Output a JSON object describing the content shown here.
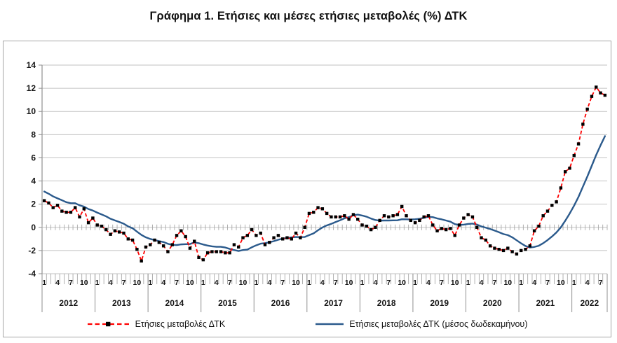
{
  "chart_data": {
    "type": "line",
    "title": "Γράφημα 1. Ετήσιες και μέσες ετήσιες μεταβολές (%) ΔΤΚ",
    "ylim": [
      -4,
      14
    ],
    "y_tick_step": 2,
    "y_tick_labels": [
      "-4",
      "-2",
      "0",
      "2",
      "4",
      "6",
      "8",
      "10",
      "12",
      "14"
    ],
    "grid": "horizontal",
    "legend_position": "bottom",
    "colors": {
      "annual": "#ff0000",
      "marker": "#000000",
      "average": "#2b5a8c",
      "gridline": "#c2c2c2",
      "axis": "#8f8f8f",
      "minor_tick": "#a8a8a8"
    },
    "x_axis": {
      "month_labels_shown": [
        "1",
        "4",
        "7",
        "10"
      ],
      "years": [
        {
          "label": "2012",
          "months": 12
        },
        {
          "label": "2013",
          "months": 12
        },
        {
          "label": "2014",
          "months": 12
        },
        {
          "label": "2015",
          "months": 12
        },
        {
          "label": "2016",
          "months": 12
        },
        {
          "label": "2017",
          "months": 12
        },
        {
          "label": "2018",
          "months": 12
        },
        {
          "label": "2019",
          "months": 12
        },
        {
          "label": "2020",
          "months": 12
        },
        {
          "label": "2021",
          "months": 12
        },
        {
          "label": "2022",
          "months": 8
        }
      ]
    },
    "series": [
      {
        "name": "Ετήσιες μεταβολές ΔΤΚ",
        "style": "dashed-with-square-markers",
        "color": "#ff0000",
        "marker_color": "#000000",
        "values": [
          2.3,
          2.1,
          1.7,
          1.9,
          1.4,
          1.3,
          1.3,
          1.7,
          0.9,
          1.6,
          0.4,
          0.8,
          0.2,
          0.1,
          -0.2,
          -0.6,
          -0.3,
          -0.4,
          -0.5,
          -1.0,
          -1.1,
          -1.9,
          -2.9,
          -1.7,
          -1.5,
          -1.1,
          -1.3,
          -1.6,
          -2.1,
          -1.5,
          -0.7,
          -0.3,
          -0.8,
          -1.8,
          -1.2,
          -2.6,
          -2.8,
          -2.2,
          -2.1,
          -2.1,
          -2.1,
          -2.2,
          -2.2,
          -1.5,
          -1.7,
          -0.9,
          -0.7,
          -0.2,
          -0.7,
          -0.5,
          -1.5,
          -1.3,
          -0.9,
          -0.7,
          -1.0,
          -0.9,
          -1.0,
          -0.5,
          -0.9,
          0.0,
          1.2,
          1.3,
          1.7,
          1.6,
          1.2,
          0.9,
          0.9,
          0.9,
          1.0,
          0.7,
          1.1,
          0.7,
          0.2,
          0.1,
          -0.2,
          0.0,
          0.6,
          1.0,
          0.9,
          1.0,
          1.1,
          1.8,
          1.0,
          0.6,
          0.4,
          0.6,
          0.9,
          1.0,
          0.2,
          -0.3,
          -0.1,
          -0.2,
          -0.1,
          -0.7,
          0.2,
          0.8,
          1.1,
          0.9,
          0.0,
          -0.9,
          -1.1,
          -1.6,
          -1.8,
          -1.9,
          -2.0,
          -1.8,
          -2.1,
          -2.3,
          -2.0,
          -1.9,
          -1.6,
          -0.3,
          0.1,
          1.0,
          1.4,
          1.9,
          2.2,
          3.4,
          4.8,
          5.1,
          6.2,
          7.2,
          8.9,
          10.2,
          11.3,
          12.1,
          11.6,
          11.4
        ]
      },
      {
        "name": "Ετήσιες μεταβολές ΔΤΚ (μέσος δωδεκαμήνου)",
        "style": "solid",
        "color": "#2b5a8c",
        "values": [
          3.09,
          2.9,
          2.67,
          2.5,
          2.34,
          2.17,
          2.08,
          2.08,
          1.9,
          1.79,
          1.58,
          1.45,
          1.27,
          1.11,
          0.95,
          0.74,
          0.6,
          0.46,
          0.31,
          0.08,
          -0.08,
          -0.37,
          -0.65,
          -0.86,
          -1.0,
          -1.1,
          -1.19,
          -1.27,
          -1.42,
          -1.51,
          -1.53,
          -1.47,
          -1.45,
          -1.44,
          -1.3,
          -1.37,
          -1.48,
          -1.57,
          -1.64,
          -1.68,
          -1.68,
          -1.74,
          -1.86,
          -1.96,
          -2.04,
          -1.96,
          -1.92,
          -1.72,
          -1.55,
          -1.41,
          -1.36,
          -1.29,
          -1.19,
          -1.07,
          -0.97,
          -0.92,
          -0.86,
          -0.83,
          -0.84,
          -0.83,
          -0.67,
          -0.52,
          -0.25,
          -0.01,
          0.17,
          0.3,
          0.46,
          0.61,
          0.78,
          0.88,
          1.04,
          1.1,
          1.02,
          0.92,
          0.76,
          0.63,
          0.58,
          0.59,
          0.59,
          0.6,
          0.61,
          0.7,
          0.69,
          0.68,
          0.7,
          0.74,
          0.83,
          0.91,
          0.88,
          0.77,
          0.69,
          0.59,
          0.49,
          0.28,
          0.21,
          0.23,
          0.29,
          0.32,
          0.24,
          0.08,
          -0.03,
          -0.14,
          -0.28,
          -0.42,
          -0.58,
          -0.67,
          -0.86,
          -1.12,
          -1.38,
          -1.61,
          -1.74,
          -1.69,
          -1.59,
          -1.37,
          -1.1,
          -0.79,
          -0.44,
          0.0,
          0.57,
          1.19,
          1.87,
          2.63,
          3.51,
          4.38,
          5.31,
          6.24,
          7.08,
          7.87
        ]
      }
    ]
  }
}
